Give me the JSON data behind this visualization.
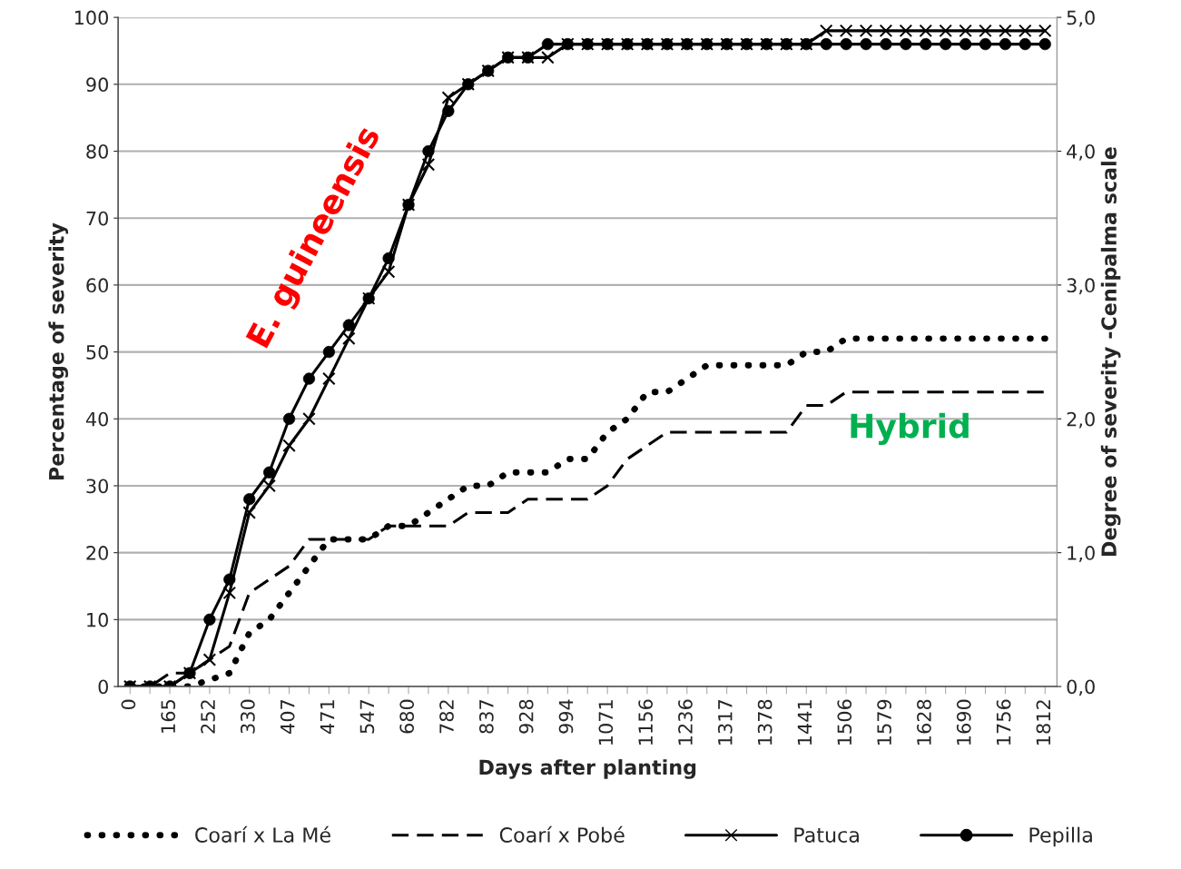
{
  "chart_data": {
    "type": "line",
    "xlabel": "Days after planting",
    "ylabel": "Percentage of severity",
    "y2label": "Degree of severity -Cenipalma scale",
    "categories": [
      "0",
      null,
      "165",
      null,
      "252",
      null,
      "330",
      null,
      "407",
      null,
      "471",
      null,
      "547",
      null,
      "680",
      null,
      "782",
      null,
      "837",
      null,
      "928",
      null,
      "994",
      null,
      "1071",
      null,
      "1156",
      null,
      "1236",
      null,
      "1317",
      null,
      "1378",
      null,
      "1441",
      null,
      "1506",
      null,
      "1579",
      null,
      "1628",
      null,
      "1690",
      null,
      "1756",
      null,
      "1812"
    ],
    "series": [
      {
        "name": "Coarí x La Mé",
        "color": "#000000",
        "marker": "none",
        "line_style": "dotted",
        "values": [
          0,
          0,
          0,
          0,
          1,
          2,
          8,
          10,
          14,
          18,
          22,
          22,
          22,
          24,
          24,
          26,
          28,
          30,
          30,
          32,
          32,
          32,
          34,
          34,
          38,
          40,
          44,
          44,
          46,
          48,
          48,
          48,
          48,
          48,
          50,
          50,
          52,
          52,
          52,
          52,
          52,
          52,
          52,
          52,
          52,
          52,
          52
        ]
      },
      {
        "name": "Coarí x Pobé",
        "color": "#000000",
        "marker": "none",
        "line_style": "dashed",
        "values": [
          0,
          0,
          2,
          2,
          4,
          6,
          14,
          16,
          18,
          22,
          22,
          22,
          22,
          24,
          24,
          24,
          24,
          26,
          26,
          26,
          28,
          28,
          28,
          28,
          30,
          34,
          36,
          38,
          38,
          38,
          38,
          38,
          38,
          38,
          42,
          42,
          44,
          44,
          44,
          44,
          44,
          44,
          44,
          44,
          44,
          44,
          44
        ]
      },
      {
        "name": "Patuca",
        "color": "#000000",
        "marker": "cross",
        "line_style": "solid",
        "values": [
          0,
          0,
          0,
          2,
          4,
          14,
          26,
          30,
          36,
          40,
          46,
          52,
          58,
          62,
          72,
          78,
          88,
          90,
          92,
          94,
          94,
          94,
          96,
          96,
          96,
          96,
          96,
          96,
          96,
          96,
          96,
          96,
          96,
          96,
          96,
          98,
          98,
          98,
          98,
          98,
          98,
          98,
          98,
          98,
          98,
          98,
          98
        ]
      },
      {
        "name": "Pepilla",
        "color": "#000000",
        "marker": "circle",
        "line_style": "solid",
        "values": [
          0,
          0,
          0,
          2,
          10,
          16,
          28,
          32,
          40,
          46,
          50,
          54,
          58,
          64,
          72,
          80,
          86,
          90,
          92,
          94,
          94,
          96,
          96,
          96,
          96,
          96,
          96,
          96,
          96,
          96,
          96,
          96,
          96,
          96,
          96,
          96,
          96,
          96,
          96,
          96,
          96,
          96,
          96,
          96,
          96,
          96,
          96
        ]
      }
    ],
    "ylim": [
      0,
      100
    ],
    "yticks": [
      0,
      10,
      20,
      30,
      40,
      50,
      60,
      70,
      80,
      90,
      100
    ],
    "y2lim": [
      0,
      5
    ],
    "y2ticks": [
      {
        "value": 0,
        "label": "0,0"
      },
      {
        "value": 1,
        "label": "1,0"
      },
      {
        "value": 2,
        "label": "2,0"
      },
      {
        "value": 3,
        "label": "3,0"
      },
      {
        "value": 4,
        "label": "4,0"
      },
      {
        "value": 5,
        "label": "5,0"
      }
    ],
    "annotations": [
      {
        "text": "E. guineensis"
      },
      {
        "text": "Hybrid"
      }
    ],
    "grid": "y",
    "legend": "bottom"
  }
}
